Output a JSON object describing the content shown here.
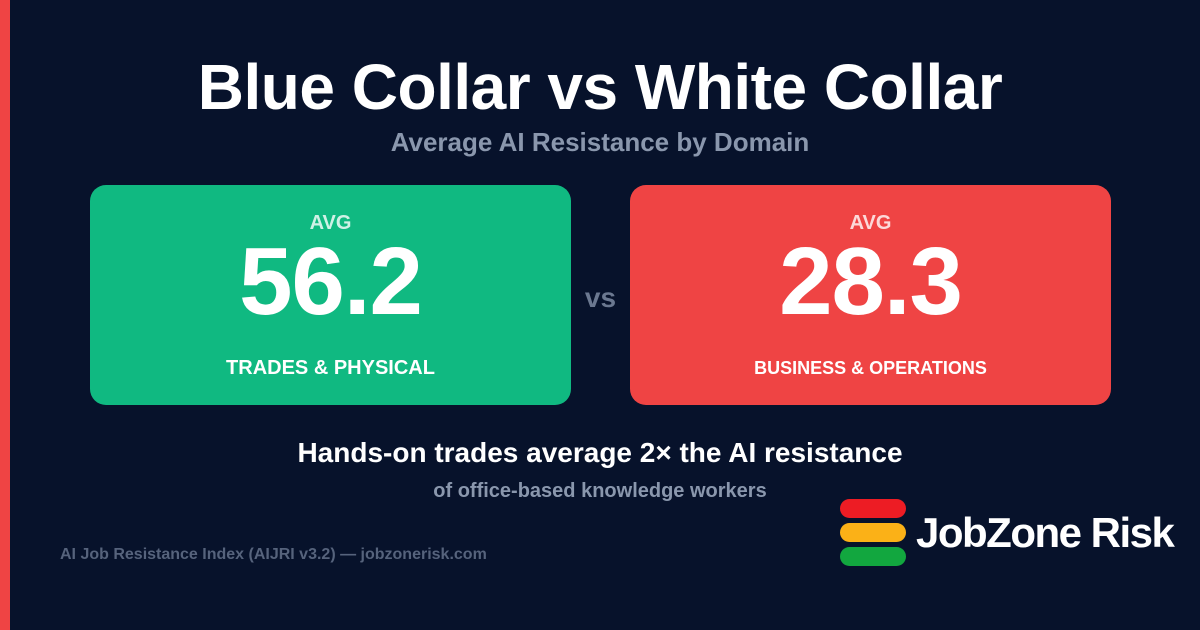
{
  "title": "Blue Collar vs White Collar",
  "subtitle": "Average AI Resistance by Domain",
  "cards": [
    {
      "avg_label": "AVG",
      "value": "56.2",
      "label": "TRADES & PHYSICAL",
      "color": "#10b981"
    },
    {
      "avg_label": "AVG",
      "value": "28.3",
      "label": "BUSINESS & OPERATIONS",
      "color": "#ef4444"
    }
  ],
  "vs": "vs",
  "headline": "Hands-on trades average 2× the AI resistance",
  "subheadline": "of office-based knowledge workers",
  "footer": "AI Job Resistance Index (AIJRI v3.2) — jobzonerisk.com",
  "logo": {
    "text": "JobZone Risk",
    "bar_colors": [
      "#ed1c24",
      "#fbb117",
      "#12a73f"
    ]
  }
}
